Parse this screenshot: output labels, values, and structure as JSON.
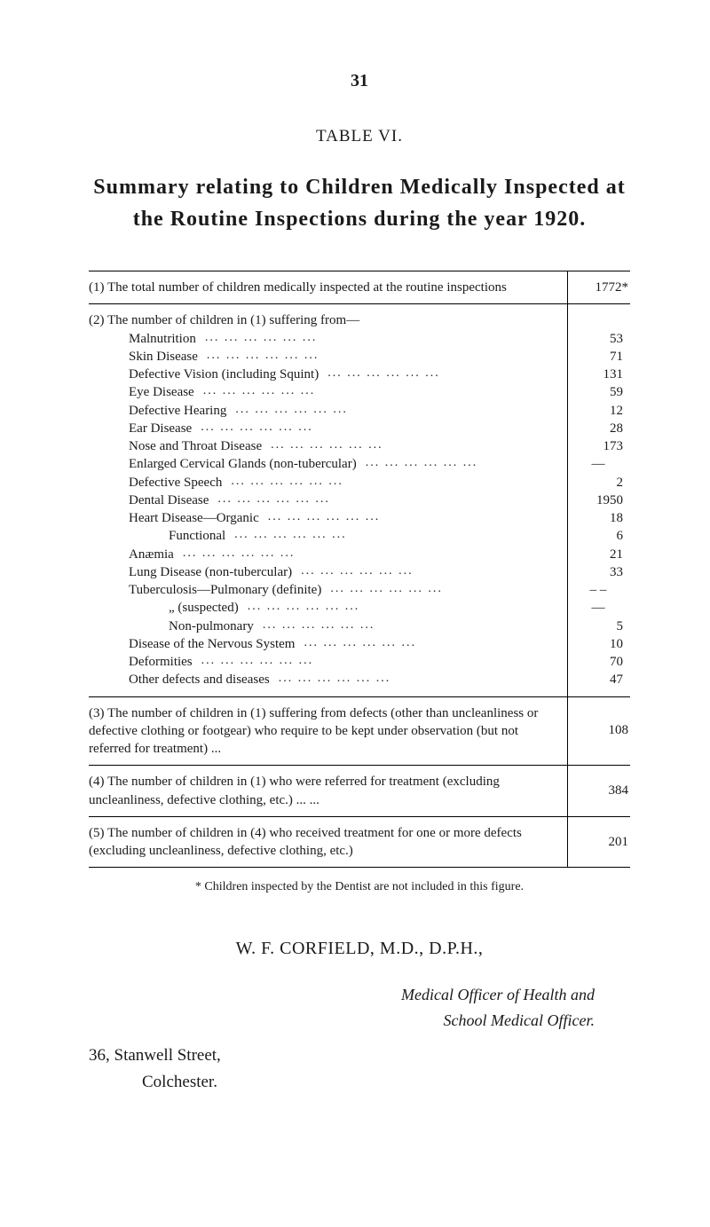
{
  "pageNumber": "31",
  "tableLabel": "TABLE VI.",
  "title": "Summary relating to Children Medically Inspected at the Routine Inspections during the year 1920.",
  "section1": {
    "text": "(1)  The total number of children medically inspected at the routine inspections",
    "value": "1772*"
  },
  "section2": {
    "header": "(2)  The number of children in (1) suffering from—",
    "rows": [
      {
        "label": "Malnutrition",
        "indent": 3,
        "value": "53"
      },
      {
        "label": "Skin Disease",
        "indent": 3,
        "value": "71"
      },
      {
        "label": "Defective Vision (including Squint)",
        "indent": 3,
        "value": "131"
      },
      {
        "label": "Eye Disease",
        "indent": 3,
        "value": "59"
      },
      {
        "label": "Defective Hearing",
        "indent": 3,
        "value": "12"
      },
      {
        "label": "Ear Disease",
        "indent": 3,
        "value": "28"
      },
      {
        "label": "Nose and Throat Disease",
        "indent": 3,
        "value": "173"
      },
      {
        "label": "Enlarged Cervical Glands (non-tubercular)",
        "indent": 3,
        "value": "—",
        "dash": true
      },
      {
        "label": "Defective Speech",
        "indent": 3,
        "value": "2"
      },
      {
        "label": "Dental Disease",
        "indent": 3,
        "value": "1950"
      },
      {
        "label": "Heart Disease—Organic",
        "indent": 3,
        "value": "18"
      },
      {
        "label": "Functional",
        "indent": 6,
        "value": "6"
      },
      {
        "label": "Anæmia",
        "indent": 3,
        "value": "21"
      },
      {
        "label": "Lung Disease (non-tubercular)",
        "indent": 3,
        "value": "33"
      },
      {
        "label": "Tuberculosis—Pulmonary (definite)",
        "indent": 3,
        "value": "– –",
        "dash": true
      },
      {
        "label": "„              (suspected)",
        "indent": 6,
        "value": "—",
        "dash": true
      },
      {
        "label": "Non-pulmonary",
        "indent": 6,
        "value": "5"
      },
      {
        "label": "Disease of the Nervous System",
        "indent": 3,
        "value": "10"
      },
      {
        "label": "Deformities",
        "indent": 3,
        "value": "70"
      },
      {
        "label": "Other defects and diseases",
        "indent": 3,
        "value": "47"
      }
    ]
  },
  "section3": {
    "text": "(3)  The number of children in (1) suffering from defects (other than uncleanliness or defective clothing or footgear) who require to be kept under observation (but not referred for treatment)   ...",
    "value": "108"
  },
  "section4": {
    "text": "(4)  The number of children in (1) who were referred for treatment (excluding uncleanliness, defective clothing, etc.) ...                   ...",
    "value": "384"
  },
  "section5": {
    "text": "(5)  The number of children in (4) who received treatment for one or more defects (excluding uncleanliness, defective clothing, etc.)",
    "value": "201"
  },
  "footnote": "* Children inspected by the Dentist are not included in this figure.",
  "signatureName": "W. F. CORFIELD, M.D., D.P.H.,",
  "signatureRole1": "Medical Officer of Health and",
  "signatureRole2": "School Medical Officer.",
  "addressLine1": "36, Stanwell Street,",
  "addressLine2": "Colchester."
}
